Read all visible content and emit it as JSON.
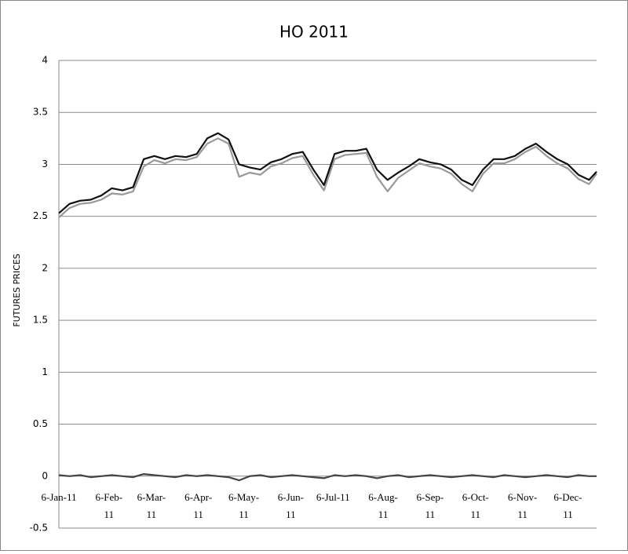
{
  "chart_data": {
    "type": "line",
    "title": "HO 2011",
    "y_label": "FUTURES PRICES",
    "x": [
      "6-Jan-11",
      "13-Jan-11",
      "20-Jan-11",
      "27-Jan-11",
      "3-Feb-11",
      "10-Feb-11",
      "17-Feb-11",
      "24-Feb-11",
      "3-Mar-11",
      "10-Mar-11",
      "17-Mar-11",
      "24-Mar-11",
      "31-Mar-11",
      "7-Apr-11",
      "14-Apr-11",
      "21-Apr-11",
      "28-Apr-11",
      "5-May-11",
      "12-May-11",
      "19-May-11",
      "26-May-11",
      "2-Jun-11",
      "9-Jun-11",
      "16-Jun-11",
      "23-Jun-11",
      "30-Jun-11",
      "7-Jul-11",
      "14-Jul-11",
      "21-Jul-11",
      "28-Jul-11",
      "4-Aug-11",
      "11-Aug-11",
      "18-Aug-11",
      "25-Aug-11",
      "1-Sep-11",
      "8-Sep-11",
      "15-Sep-11",
      "22-Sep-11",
      "29-Sep-11",
      "6-Oct-11",
      "13-Oct-11",
      "20-Oct-11",
      "27-Oct-11",
      "3-Nov-11",
      "10-Nov-11",
      "17-Nov-11",
      "24-Nov-11",
      "1-Dec-11",
      "8-Dec-11",
      "15-Dec-11",
      "22-Dec-11",
      "27-Dec-11"
    ],
    "series": [
      {
        "color": "#999999",
        "values": [
          2.49,
          2.58,
          2.62,
          2.63,
          2.66,
          2.72,
          2.71,
          2.74,
          2.98,
          3.04,
          3.01,
          3.05,
          3.04,
          3.07,
          3.2,
          3.25,
          3.2,
          2.88,
          2.92,
          2.9,
          2.98,
          3.01,
          3.06,
          3.08,
          2.9,
          2.75,
          3.05,
          3.09,
          3.1,
          3.11,
          2.88,
          2.74,
          2.87,
          2.94,
          3.01,
          2.98,
          2.96,
          2.91,
          2.81,
          2.74,
          2.91,
          3.01,
          3.01,
          3.05,
          3.12,
          3.17,
          3.08,
          3.01,
          2.96,
          2.86,
          2.81,
          2.91
        ]
      },
      {
        "color": "#111111",
        "values": [
          2.53,
          2.62,
          2.65,
          2.66,
          2.7,
          2.77,
          2.75,
          2.78,
          3.05,
          3.08,
          3.05,
          3.08,
          3.07,
          3.1,
          3.25,
          3.3,
          3.24,
          3.0,
          2.97,
          2.95,
          3.02,
          3.05,
          3.1,
          3.12,
          2.95,
          2.8,
          3.1,
          3.13,
          3.13,
          3.15,
          2.95,
          2.85,
          2.92,
          2.98,
          3.05,
          3.02,
          3.0,
          2.95,
          2.85,
          2.8,
          2.95,
          3.05,
          3.05,
          3.08,
          3.15,
          3.2,
          3.12,
          3.05,
          3.0,
          2.9,
          2.85,
          2.93
        ]
      },
      {
        "color": "#444444",
        "values": [
          0.01,
          0.0,
          0.01,
          -0.01,
          0.0,
          0.01,
          0.0,
          -0.01,
          0.02,
          0.01,
          0.0,
          -0.01,
          0.01,
          0.0,
          0.01,
          0.0,
          -0.01,
          -0.04,
          0.0,
          0.01,
          -0.01,
          0.0,
          0.01,
          0.0,
          -0.01,
          -0.02,
          0.01,
          0.0,
          0.01,
          0.0,
          -0.02,
          0.0,
          0.01,
          -0.01,
          0.0,
          0.01,
          0.0,
          -0.01,
          0.0,
          0.01,
          0.0,
          -0.01,
          0.01,
          0.0,
          -0.01,
          0.0,
          0.01,
          0.0,
          -0.01,
          0.01,
          0.0,
          0.0
        ]
      }
    ],
    "xlim": [
      "6-Jan-11",
      "27-Dec-11"
    ],
    "xticks": [
      "6-Jan-11",
      "6-Feb-11",
      "6-Mar-11",
      "6-Apr-11",
      "6-May-11",
      "6-Jun-11",
      "6-Jul-11",
      "6-Aug-11",
      "6-Sep-11",
      "6-Oct-11",
      "6-Nov-11",
      "6-Dec-11"
    ],
    "ylim": [
      -0.5,
      4
    ],
    "yticks": [
      -0.5,
      0,
      0.5,
      1,
      1.5,
      2,
      2.5,
      3,
      3.5,
      4
    ],
    "grid": true
  }
}
